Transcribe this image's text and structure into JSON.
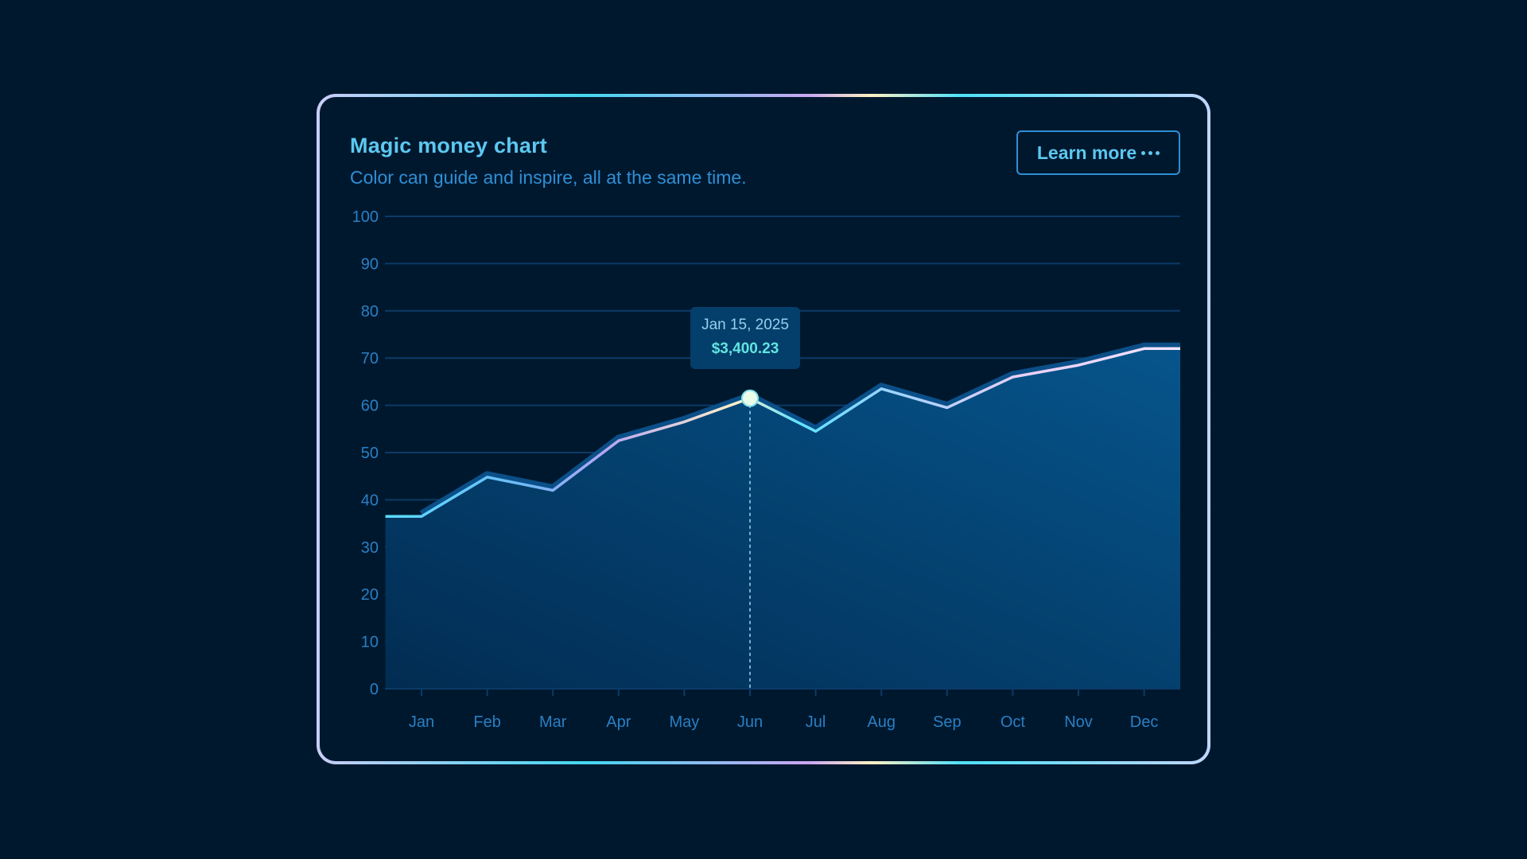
{
  "card": {
    "title": "Magic money chart",
    "subtitle": "Color can guide and inspire, all at the same time.",
    "button_label": "Learn more",
    "button_icon": "more-dots-icon"
  },
  "tooltip": {
    "date": "Jan 15, 2025",
    "value": "$3,400.23"
  },
  "colors": {
    "background": "#00182e",
    "accent": "#5cc8f0",
    "axis": "#2a7fc4",
    "area_top": "#06558c",
    "area_bottom": "#022f57"
  },
  "chart_data": {
    "type": "area",
    "title": "Magic money chart",
    "subtitle": "Color can guide and inspire, all at the same time.",
    "categories": [
      "Jan",
      "Feb",
      "Mar",
      "Apr",
      "May",
      "Jun",
      "Jul",
      "Aug",
      "Sep",
      "Oct",
      "Nov",
      "Dec"
    ],
    "series": [
      {
        "x": [
          0,
          0.55,
          1.55,
          2.55,
          3.55,
          4.55,
          5.55,
          6.55,
          7.55,
          8.55,
          9.55,
          10.55,
          11.55,
          12.1
        ],
        "values": [
          36.5,
          36.5,
          44.8,
          42,
          52.5,
          56.5,
          61.5,
          54.5,
          63.5,
          59.5,
          66,
          68.5,
          72,
          72
        ]
      }
    ],
    "highlight": {
      "category": "Jun",
      "value": 61.5
    },
    "yticks": [
      0,
      10,
      20,
      30,
      40,
      50,
      60,
      70,
      80,
      90,
      100
    ],
    "ylim": [
      0,
      100
    ],
    "grid": true,
    "legend": "none"
  }
}
